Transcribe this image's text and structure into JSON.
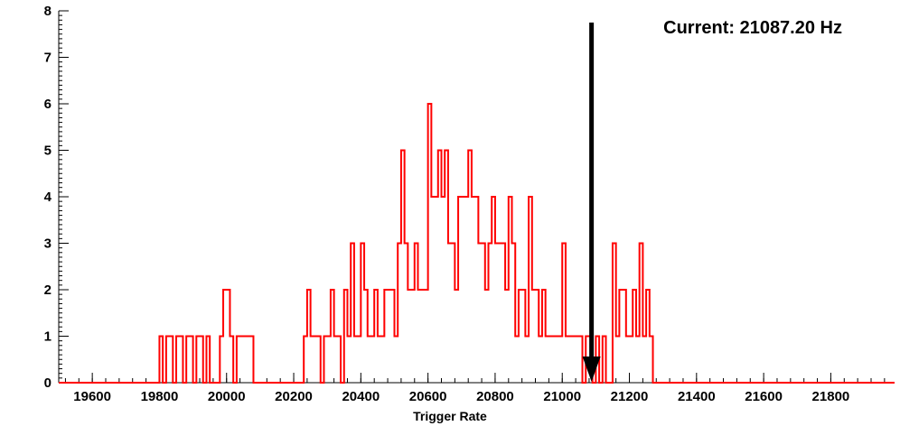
{
  "chart_data": {
    "type": "bar",
    "subtype": "step-histogram",
    "xlabel": "Trigger Rate",
    "ylabel": "",
    "x_axis": {
      "min": 19500,
      "max": 21990,
      "major_tick_labels": [
        "19600",
        "19800",
        "20000",
        "20200",
        "20400",
        "20600",
        "20800",
        "21000",
        "21200",
        "21400",
        "21600",
        "21800"
      ],
      "minor_tick_step": 40
    },
    "y_axis": {
      "min": 0,
      "max": 8,
      "major_tick_labels": [
        "0",
        "1",
        "2",
        "3",
        "4",
        "5",
        "6",
        "7",
        "8"
      ],
      "minor_tick_step": 0.1
    },
    "histogram": {
      "bin_start": 19800,
      "bin_width": 10,
      "counts": [
        1,
        0,
        1,
        1,
        0,
        1,
        1,
        0,
        1,
        1,
        0,
        1,
        1,
        0,
        1,
        0,
        0,
        0,
        1,
        2,
        2,
        1,
        0,
        1,
        1,
        1,
        1,
        1,
        0,
        0,
        0,
        0,
        0,
        0,
        0,
        0,
        0,
        0,
        0,
        0,
        0,
        0,
        0,
        1,
        2,
        1,
        1,
        1,
        0,
        1,
        1,
        2,
        1,
        1,
        0,
        2,
        1,
        3,
        1,
        1,
        3,
        2,
        1,
        1,
        2,
        1,
        1,
        2,
        2,
        2,
        1,
        3,
        5,
        3,
        2,
        2,
        3,
        2,
        2,
        2,
        6,
        4,
        4,
        5,
        4,
        5,
        3,
        3,
        2,
        4,
        4,
        4,
        5,
        4,
        4,
        3,
        3,
        2,
        3,
        4,
        3,
        3,
        3,
        2,
        4,
        3,
        1,
        2,
        2,
        1,
        4,
        2,
        2,
        1,
        2,
        1,
        1,
        1,
        1,
        1,
        3,
        1,
        1,
        1,
        1,
        1,
        0,
        1,
        1,
        0,
        1,
        0,
        1,
        0,
        0,
        3,
        1,
        2,
        2,
        1,
        1,
        2,
        1,
        3,
        1,
        2,
        1
      ]
    },
    "annotation": {
      "text": "Current: 21087.20 Hz",
      "arrow_x": 21087.2
    },
    "legend": {
      "visible": false
    },
    "grid": false,
    "colors": {
      "histogram": "#ff0000",
      "arrow": "#000000",
      "axis": "#000000",
      "background": "#ffffff"
    }
  }
}
